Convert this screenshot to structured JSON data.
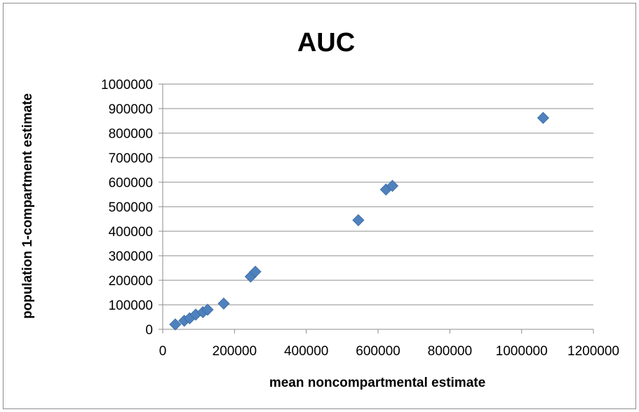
{
  "chart_data": {
    "type": "scatter",
    "title": "AUC",
    "xlabel": "mean noncompartmental estimate",
    "ylabel": "population  1-compartment estimate",
    "xlim": [
      0,
      1200000
    ],
    "ylim": [
      0,
      1000000
    ],
    "x_ticks": [
      0,
      200000,
      400000,
      600000,
      800000,
      1000000,
      1200000
    ],
    "y_ticks": [
      0,
      100000,
      200000,
      300000,
      400000,
      500000,
      600000,
      700000,
      800000,
      900000,
      1000000
    ],
    "x_tick_labels": [
      "0",
      "200000",
      "400000",
      "600000",
      "800000",
      "1000000",
      "1200000"
    ],
    "y_tick_labels": [
      "0",
      "100000",
      "200000",
      "300000",
      "400000",
      "500000",
      "600000",
      "700000",
      "800000",
      "900000",
      "1000000"
    ],
    "grid": "horizontal",
    "legend": "none",
    "marker": "diamond",
    "series": [
      {
        "color": "#4f81bd",
        "points": [
          {
            "x": 35000,
            "y": 20000
          },
          {
            "x": 60000,
            "y": 35000
          },
          {
            "x": 75000,
            "y": 45000
          },
          {
            "x": 92000,
            "y": 60000
          },
          {
            "x": 112000,
            "y": 70000
          },
          {
            "x": 125000,
            "y": 80000
          },
          {
            "x": 170000,
            "y": 105000
          },
          {
            "x": 245000,
            "y": 215000
          },
          {
            "x": 258000,
            "y": 235000
          },
          {
            "x": 545000,
            "y": 445000
          },
          {
            "x": 622000,
            "y": 570000
          },
          {
            "x": 640000,
            "y": 585000
          },
          {
            "x": 1060000,
            "y": 862000
          }
        ]
      }
    ]
  }
}
